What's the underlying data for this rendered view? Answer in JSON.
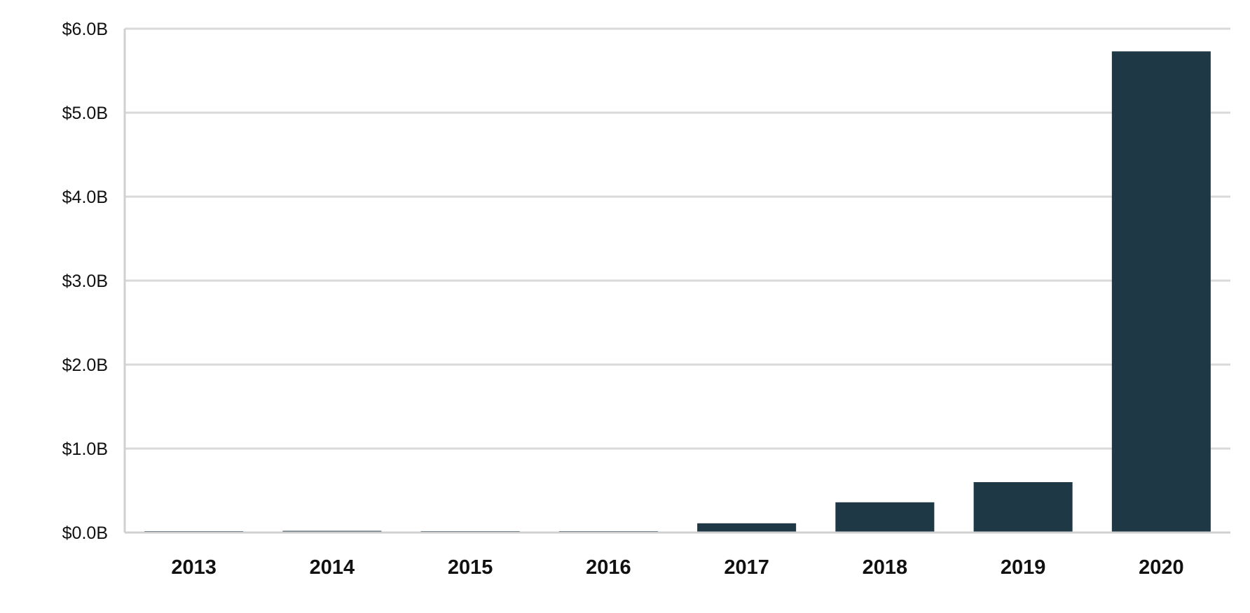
{
  "chart_data": {
    "type": "bar",
    "categories": [
      "2013",
      "2014",
      "2015",
      "2016",
      "2017",
      "2018",
      "2019",
      "2020"
    ],
    "values": [
      0.01,
      0.02,
      0.005,
      0.01,
      0.11,
      0.36,
      0.6,
      5.73
    ],
    "value_unit": "$B",
    "ylim": [
      0,
      6
    ],
    "yticks": [
      0,
      1,
      2,
      3,
      4,
      5,
      6
    ],
    "ytick_labels": [
      "$0.0B",
      "$1.0B",
      "$2.0B",
      "$3.0B",
      "$4.0B",
      "$5.0B",
      "$6.0B"
    ],
    "title": "",
    "xlabel": "",
    "ylabel": "",
    "grid": "horizontal",
    "legend": "none",
    "bar_color": "#1e3846",
    "grid_color": "#d9d9d9"
  }
}
